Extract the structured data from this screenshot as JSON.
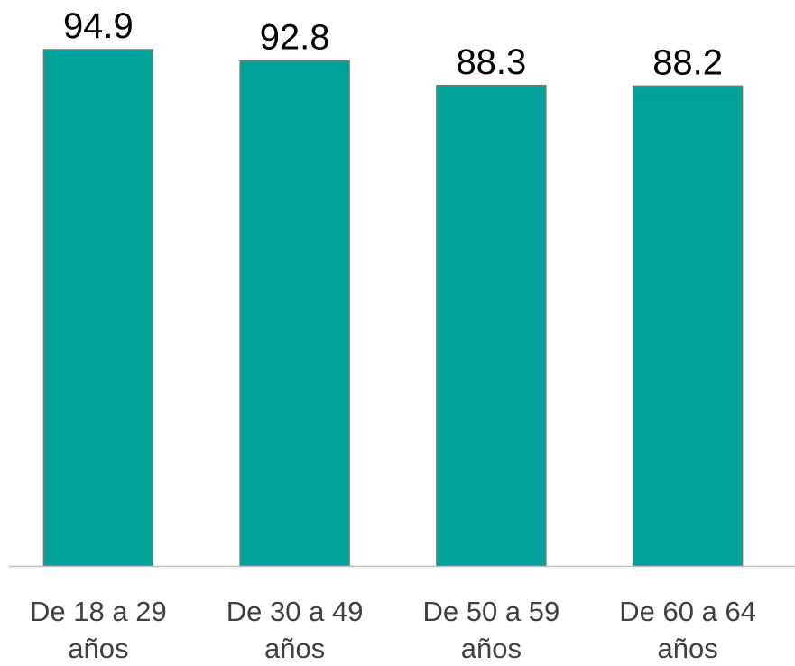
{
  "chart_data": {
    "type": "bar",
    "categories": [
      [
        "De 18 a 29",
        "años"
      ],
      [
        "De 30 a 49",
        "años"
      ],
      [
        "De 50 a 59",
        "años"
      ],
      [
        "De 60 a 64",
        "años"
      ]
    ],
    "values": [
      94.9,
      92.8,
      88.3,
      88.2
    ],
    "data_labels": [
      "94.9",
      "92.8",
      "88.3",
      "88.2"
    ],
    "ylim": [
      0,
      100
    ],
    "grid": false,
    "legend": "none",
    "colors": {
      "bar_fill": "#00A39A",
      "bar_stroke": "#6b7d7b",
      "axis": "#bfbfbf"
    }
  }
}
